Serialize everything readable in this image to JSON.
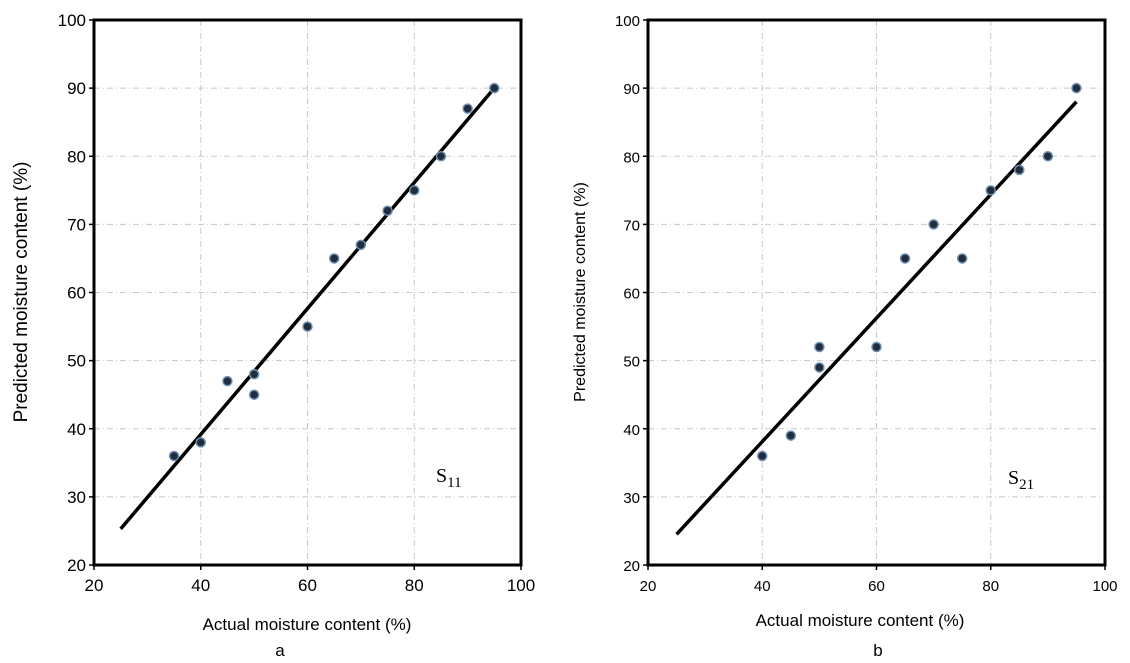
{
  "chart_data": [
    {
      "type": "scatter",
      "panel_label": "a",
      "xlabel": "Actual moisture content (%)",
      "ylabel": "Predicted moisture content (%)",
      "xlim": [
        20,
        100
      ],
      "ylim": [
        20,
        100
      ],
      "x_ticks": [
        20,
        40,
        60,
        80,
        100
      ],
      "y_ticks": [
        20,
        30,
        40,
        50,
        60,
        70,
        80,
        90,
        100
      ],
      "grid": true,
      "annotation": {
        "base": "S",
        "subscript": "11"
      },
      "points": [
        {
          "x": 35,
          "y": 36
        },
        {
          "x": 40,
          "y": 38
        },
        {
          "x": 45,
          "y": 47
        },
        {
          "x": 50,
          "y": 48
        },
        {
          "x": 50,
          "y": 45
        },
        {
          "x": 60,
          "y": 55
        },
        {
          "x": 65,
          "y": 65
        },
        {
          "x": 70,
          "y": 67
        },
        {
          "x": 75,
          "y": 72
        },
        {
          "x": 80,
          "y": 75
        },
        {
          "x": 85,
          "y": 80
        },
        {
          "x": 90,
          "y": 87
        },
        {
          "x": 95,
          "y": 90
        }
      ],
      "fit_line": {
        "x": [
          25,
          95
        ],
        "y": [
          25.3,
          90
        ]
      }
    },
    {
      "type": "scatter",
      "panel_label": "b",
      "xlabel": "Actual moisture content (%)",
      "ylabel": "Predicted moisture content (%)",
      "xlim": [
        20,
        100
      ],
      "ylim": [
        20,
        100
      ],
      "x_ticks": [
        20,
        40,
        60,
        80,
        100
      ],
      "y_ticks": [
        20,
        30,
        40,
        50,
        60,
        70,
        80,
        90,
        100
      ],
      "grid": true,
      "annotation": {
        "base": "S",
        "subscript": "21"
      },
      "points": [
        {
          "x": 40,
          "y": 36
        },
        {
          "x": 45,
          "y": 39
        },
        {
          "x": 50,
          "y": 49
        },
        {
          "x": 50,
          "y": 52
        },
        {
          "x": 60,
          "y": 52
        },
        {
          "x": 65,
          "y": 65
        },
        {
          "x": 70,
          "y": 70
        },
        {
          "x": 75,
          "y": 65
        },
        {
          "x": 80,
          "y": 75
        },
        {
          "x": 85,
          "y": 78
        },
        {
          "x": 90,
          "y": 80
        },
        {
          "x": 95,
          "y": 90
        }
      ],
      "fit_line": {
        "x": [
          25,
          95
        ],
        "y": [
          24.5,
          88
        ]
      }
    }
  ]
}
